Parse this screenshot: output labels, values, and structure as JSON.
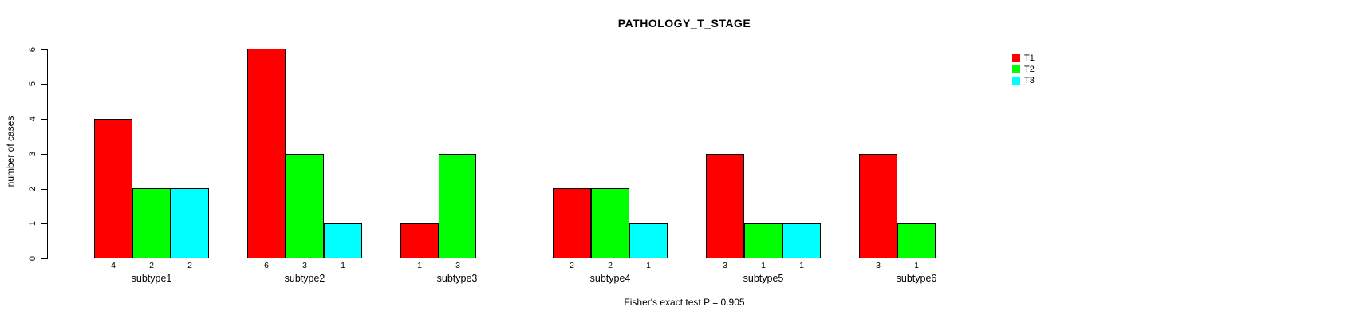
{
  "figure": {
    "background": "#ffffff",
    "text_color": "#000000"
  },
  "chart_data": {
    "type": "bar",
    "title": "PATHOLOGY_T_STAGE",
    "xlabel": "",
    "ylabel": "number of cases",
    "categories": [
      "subtype1",
      "subtype2",
      "subtype3",
      "subtype4",
      "subtype5",
      "subtype6"
    ],
    "series": [
      {
        "name": "T1",
        "color": "#ff0000",
        "values": [
          4,
          6,
          1,
          2,
          3,
          3
        ]
      },
      {
        "name": "T2",
        "color": "#00ff00",
        "values": [
          2,
          3,
          3,
          2,
          1,
          1
        ]
      },
      {
        "name": "T3",
        "color": "#00ffff",
        "values": [
          2,
          1,
          0,
          1,
          1,
          0
        ]
      }
    ],
    "bar_value_labels": [
      [
        "4",
        "2",
        "2"
      ],
      [
        "6",
        "3",
        "1"
      ],
      [
        "1",
        "3",
        ""
      ],
      [
        "2",
        "2",
        "1"
      ],
      [
        "3",
        "1",
        "1"
      ],
      [
        "3",
        "1",
        ""
      ]
    ],
    "ylim": [
      0,
      6
    ],
    "yticks": [
      0,
      1,
      2,
      3,
      4,
      5,
      6
    ],
    "grid": false,
    "legend_position": "top-right",
    "legend_entries": [
      "T1",
      "T2",
      "T3"
    ],
    "annotation": "Fisher's exact test P = 0.905"
  }
}
